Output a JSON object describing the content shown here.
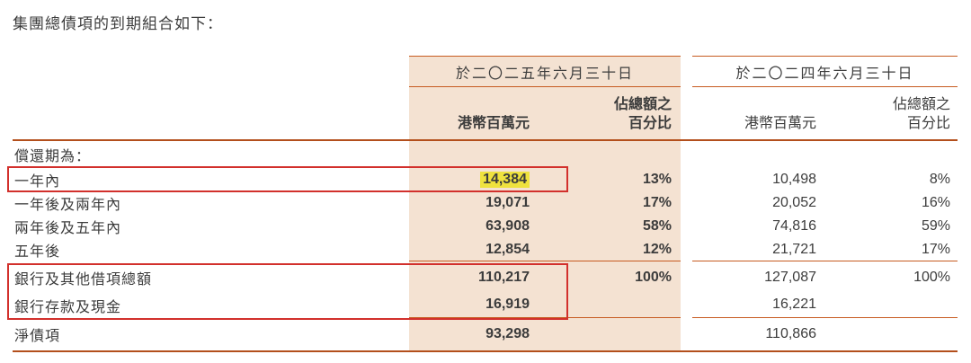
{
  "intro": "集團總債項的到期組合如下：",
  "table": {
    "period_headers": [
      "於二〇二五年六月三十日",
      "於二〇二四年六月三十日"
    ],
    "sub_headers": {
      "amount": "港幣百萬元",
      "pct_line1": "佔總額之",
      "pct_line2": "百分比"
    },
    "section_label": "償還期為：",
    "rows": [
      {
        "label": "一年內",
        "amount_2025": "14,384",
        "pct_2025": "13%",
        "amount_2024": "10,498",
        "pct_2024": "8%"
      },
      {
        "label": "一年後及兩年內",
        "amount_2025": "19,071",
        "pct_2025": "17%",
        "amount_2024": "20,052",
        "pct_2024": "16%"
      },
      {
        "label": "兩年後及五年內",
        "amount_2025": "63,908",
        "pct_2025": "58%",
        "amount_2024": "74,816",
        "pct_2024": "59%"
      },
      {
        "label": "五年後",
        "amount_2025": "12,854",
        "pct_2025": "12%",
        "amount_2024": "21,721",
        "pct_2024": "17%"
      },
      {
        "label": "銀行及其他借項總額",
        "amount_2025": "110,217",
        "pct_2025": "100%",
        "amount_2024": "127,087",
        "pct_2024": "100%"
      },
      {
        "label": "銀行存款及現金",
        "amount_2025": "16,919",
        "pct_2025": "",
        "amount_2024": "16,221",
        "pct_2024": ""
      },
      {
        "label": "淨債項",
        "amount_2025": "93,298",
        "pct_2025": "",
        "amount_2024": "110,866",
        "pct_2024": ""
      }
    ]
  },
  "annotations": {
    "highlighted_value": "14,384",
    "boxed_row_1": "一年內",
    "boxed_rows_2": [
      "銀行及其他借項總額",
      "銀行存款及現金"
    ]
  },
  "colors": {
    "column_background": "#f4e2d2",
    "rule_line": "#c75b21",
    "thick_rule_line": "#b34f1c",
    "highlight_yellow": "#efe23e",
    "annotation_red": "#d2302c",
    "text": "#3c3c3c"
  }
}
